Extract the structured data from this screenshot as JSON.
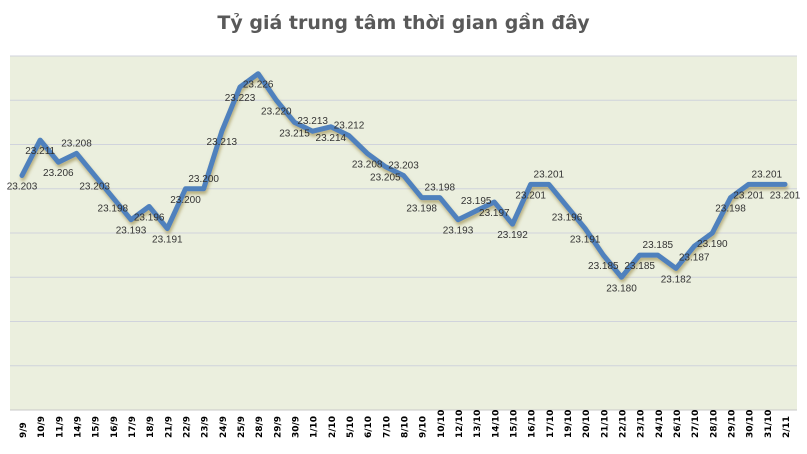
{
  "chart_data": {
    "type": "line",
    "title": "Tỷ giá trung tâm thời gian gần đây",
    "xlabel": "",
    "ylabel": "",
    "categories": [
      "9/9",
      "10/9",
      "11/9",
      "14/9",
      "15/9",
      "16/9",
      "17/9",
      "18/9",
      "21/9",
      "22/9",
      "23/9",
      "24/9",
      "25/9",
      "28/9",
      "29/9",
      "30/9",
      "1/10",
      "2/10",
      "5/10",
      "6/10",
      "7/10",
      "8/10",
      "9/10",
      "10/10",
      "12/10",
      "13/10",
      "14/10",
      "15/10",
      "16/10",
      "17/10",
      "19/10",
      "20/10",
      "21/10",
      "22/10",
      "23/10",
      "24/10",
      "26/10",
      "27/10",
      "28/10",
      "29/10",
      "30/10",
      "31/10",
      "2/11"
    ],
    "values": [
      23.203,
      23.211,
      23.206,
      23.208,
      23.203,
      23.198,
      23.193,
      23.196,
      23.191,
      23.2,
      23.2,
      23.213,
      23.223,
      23.226,
      23.22,
      23.215,
      23.213,
      23.214,
      23.212,
      23.208,
      23.205,
      23.203,
      23.198,
      23.198,
      23.193,
      23.195,
      23.197,
      23.192,
      23.201,
      23.201,
      23.196,
      23.191,
      23.185,
      23.18,
      23.185,
      23.185,
      23.182,
      23.187,
      23.19,
      23.198,
      23.201,
      23.201,
      23.201
    ],
    "ylim": [
      23.15,
      23.23
    ],
    "grid": true,
    "y_tick_labels_shown": false,
    "data_labels": true,
    "colors": {
      "line": "#4F81BD",
      "plot_background": "#EBEFDE",
      "grid": "#D0D3DC",
      "title": "#595959"
    }
  }
}
